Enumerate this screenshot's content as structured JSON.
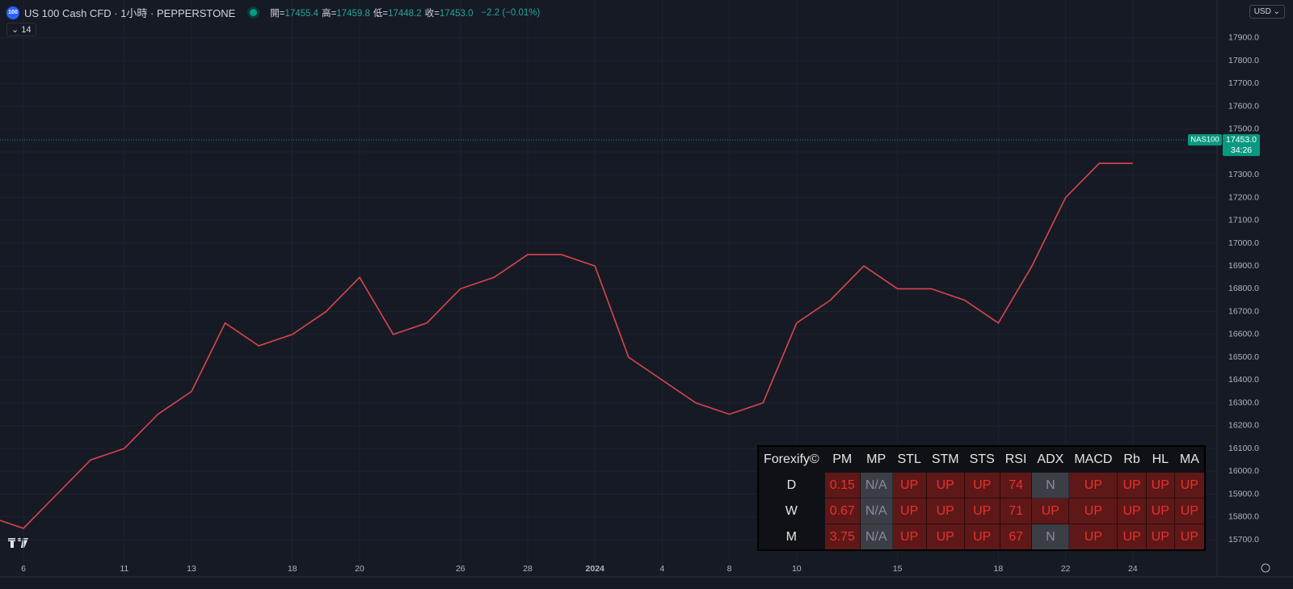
{
  "header": {
    "symbol_badge": "100",
    "title": "US 100 Cash CFD · 1小時 · PEPPERSTONE",
    "ohlc": [
      {
        "label": "開=",
        "value": "17455.4"
      },
      {
        "label": "高=",
        "value": "17459.8"
      },
      {
        "label": "低=",
        "value": "17448.2"
      },
      {
        "label": "收=",
        "value": "17453.0"
      }
    ],
    "change": "−2.2 (−0.01%)",
    "indicator_count": "14",
    "currency": "USD"
  },
  "chart_data": {
    "type": "line",
    "color": "#d9464a",
    "categories": [
      null,
      "6",
      null,
      null,
      "11",
      null,
      "13",
      null,
      null,
      "18",
      null,
      "20",
      null,
      null,
      "26",
      null,
      "28",
      null,
      "2024",
      null,
      "4",
      null,
      "8",
      null,
      "10",
      null,
      null,
      "15",
      null,
      null,
      "18",
      null,
      "22",
      null,
      "24"
    ],
    "values": [
      15800,
      15750,
      15900,
      16050,
      16100,
      16250,
      16350,
      16650,
      16550,
      16600,
      16700,
      16850,
      16600,
      16650,
      16800,
      16850,
      16950,
      16950,
      16900,
      16500,
      16400,
      16300,
      16250,
      16300,
      16650,
      16750,
      16900,
      16800,
      16800,
      16750,
      16650,
      16900,
      17200,
      17350,
      17350
    ],
    "ylim": [
      15569,
      18066
    ],
    "yticks": [
      {
        "value": 15700,
        "label": "15700.0"
      },
      {
        "value": 15800,
        "label": "15800.0"
      },
      {
        "value": 15900,
        "label": "15900.0"
      },
      {
        "value": 16000,
        "label": "16000.0"
      },
      {
        "value": 16100,
        "label": "16100.0"
      },
      {
        "value": 16200,
        "label": "16200.0"
      },
      {
        "value": 16300,
        "label": "16300.0"
      },
      {
        "value": 16400,
        "label": "16400.0"
      },
      {
        "value": 16500,
        "label": "16500.0"
      },
      {
        "value": 16600,
        "label": "16600.0"
      },
      {
        "value": 16700,
        "label": "16700.0"
      },
      {
        "value": 16800,
        "label": "16800.0"
      },
      {
        "value": 16900,
        "label": "16900.0"
      },
      {
        "value": 17000,
        "label": "17000.0"
      },
      {
        "value": 17100,
        "label": "17100.0"
      },
      {
        "value": 17200,
        "label": "17200.0"
      },
      {
        "value": 17300,
        "label": "17300.0"
      },
      {
        "value": 17400,
        "label": "17400.0"
      },
      {
        "value": 17500,
        "label": "17500.0"
      },
      {
        "value": 17600,
        "label": "17600.0"
      },
      {
        "value": 17700,
        "label": "17700.0"
      },
      {
        "value": 17800,
        "label": "17800.0"
      },
      {
        "value": 17900,
        "label": "17900.0"
      }
    ],
    "grid": true,
    "price_line": {
      "value": 17453,
      "label": "17453.0",
      "name": "NAS100",
      "countdown": "34:26"
    }
  },
  "table": {
    "header": [
      "Forexify©",
      "PM",
      "MP",
      "STL",
      "STM",
      "STS",
      "RSI",
      "ADX",
      "MACD",
      "Rb",
      "HL",
      "MA"
    ],
    "rows": [
      [
        "D",
        "0.15",
        "N/A",
        "UP",
        "UP",
        "UP",
        "74",
        "N",
        "UP",
        "UP",
        "UP",
        "UP"
      ],
      [
        "W",
        "0.67",
        "N/A",
        "UP",
        "UP",
        "UP",
        "71",
        "UP",
        "UP",
        "UP",
        "UP",
        "UP"
      ],
      [
        "M",
        "3.75",
        "N/A",
        "UP",
        "UP",
        "UP",
        "67",
        "N",
        "UP",
        "UP",
        "UP",
        "UP"
      ]
    ]
  }
}
